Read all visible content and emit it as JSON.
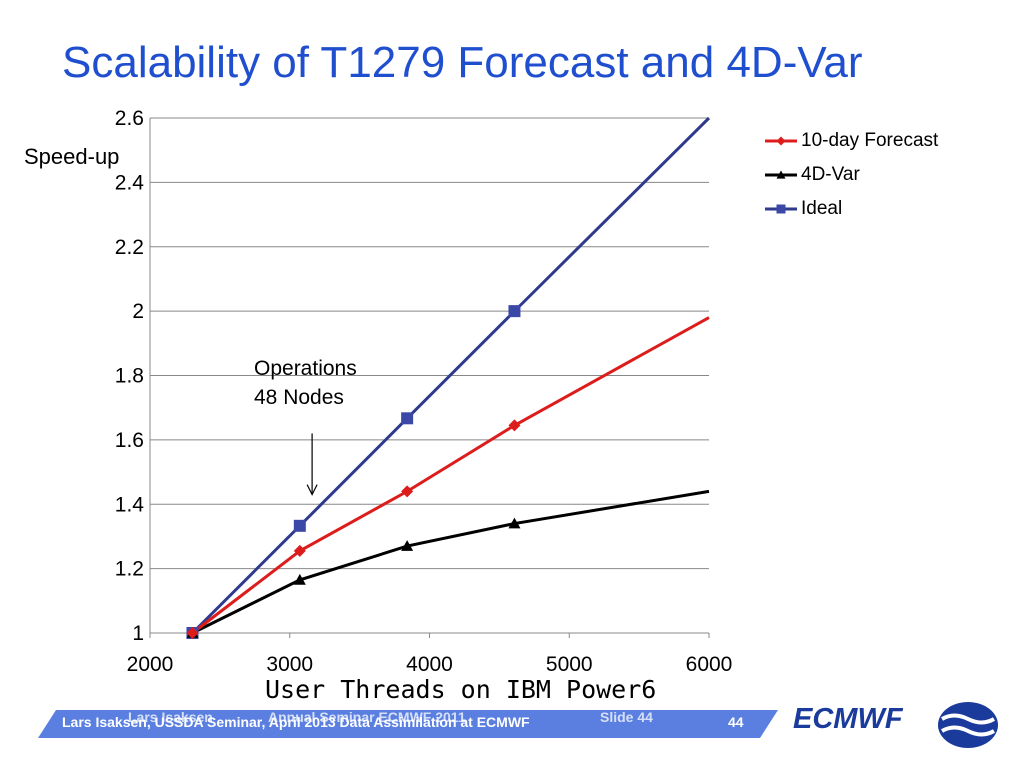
{
  "slide": {
    "title": "Scalability of T1279 Forecast and 4D-Var",
    "footer": {
      "main": "Lars Isaksen, USSDA Seminar, April 2013   Data Assimilation at ECMWF",
      "page_number": "44",
      "ghost_author": "Lars Isaksen",
      "ghost_event": "Annual Seminar ECMWF 2011",
      "ghost_slide": "Slide 44",
      "brand": "ECMWF",
      "band_color": "#5a7fe0"
    }
  },
  "chart_data": {
    "type": "line",
    "title": "",
    "xlabel": "User Threads on IBM Power6",
    "ylabel": "Speed-up",
    "xlim": [
      2000,
      6000
    ],
    "ylim": [
      1,
      2.6
    ],
    "xticks": [
      "2000",
      "3000",
      "4000",
      "5000",
      "6000"
    ],
    "yticks": [
      "1",
      "1.2",
      "1.4",
      "1.6",
      "1.8",
      "2",
      "2.2",
      "2.4",
      "2.6"
    ],
    "xtick_values": [
      2000,
      3000,
      4000,
      5000,
      6000
    ],
    "ytick_values": [
      1,
      1.2,
      1.4,
      1.6,
      1.8,
      2,
      2.2,
      2.4,
      2.6
    ],
    "grid": "horizontal",
    "legend_position": "right",
    "series": [
      {
        "name": "10-day Forecast",
        "color": "#dd1c1c",
        "marker": "diamond",
        "points": [
          [
            2304,
            1.0
          ],
          [
            3072,
            1.255
          ],
          [
            3840,
            1.44
          ],
          [
            4608,
            1.645
          ],
          [
            6000,
            1.98
          ]
        ],
        "marker_count": 4
      },
      {
        "name": "4D-Var",
        "color": "#000000",
        "marker": "triangle",
        "points": [
          [
            2304,
            1.0
          ],
          [
            3072,
            1.165
          ],
          [
            3840,
            1.27
          ],
          [
            4608,
            1.34
          ],
          [
            6000,
            1.44
          ]
        ],
        "marker_count": 4
      },
      {
        "name": "Ideal",
        "color": "#2f3a8c",
        "marker": "square",
        "marker_color": "#3c48a8",
        "points": [
          [
            2304,
            1.0
          ],
          [
            3072,
            1.333
          ],
          [
            3840,
            1.667
          ],
          [
            4608,
            2.0
          ],
          [
            6000,
            2.6
          ]
        ],
        "marker_count": 4
      }
    ],
    "annotation": {
      "line1": "Operations",
      "line2": "48 Nodes",
      "x": 3160,
      "y_from": 1.62,
      "y_to": 1.43
    }
  }
}
